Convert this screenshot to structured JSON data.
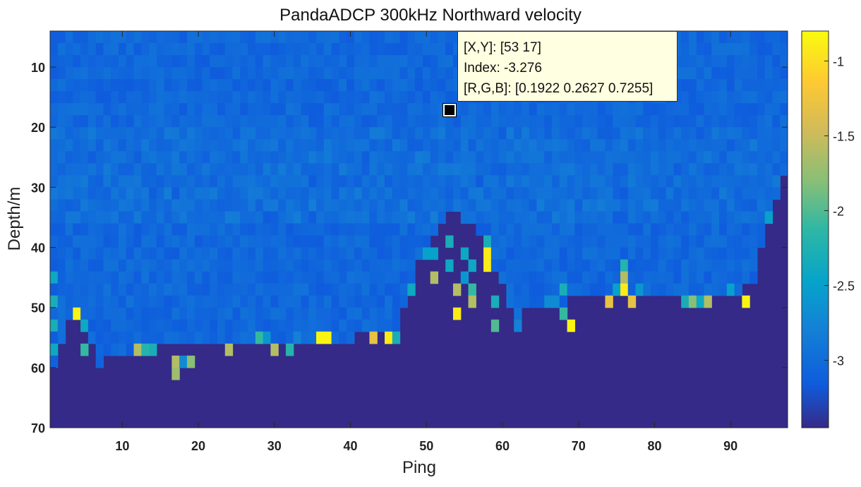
{
  "chart_data": {
    "type": "heatmap",
    "title": "PandaADCP 300kHz Northward velocity",
    "xlabel": "Ping",
    "ylabel": "Depth/m",
    "xlim": [
      0.5,
      97.5
    ],
    "ylim": [
      4,
      70
    ],
    "y_reversed": true,
    "xticks": [
      "10",
      "20",
      "30",
      "40",
      "50",
      "60",
      "70",
      "80",
      "90"
    ],
    "yticks": [
      "10",
      "20",
      "30",
      "40",
      "50",
      "60",
      "70"
    ],
    "colorbar": {
      "colormap": "parula",
      "range": [
        -3.45,
        -0.8
      ],
      "ticks": [
        "-1",
        "-1.5",
        "-2",
        "-2.5",
        "-3"
      ]
    },
    "background_value": -3.45,
    "base_value": -3.05,
    "bottom_depth_profile": [
      [
        1,
        60
      ],
      [
        3,
        52
      ],
      [
        4,
        50
      ],
      [
        7,
        60
      ],
      [
        9,
        58
      ],
      [
        16,
        56
      ],
      [
        25,
        56
      ],
      [
        35,
        56
      ],
      [
        46,
        54
      ],
      [
        48,
        46
      ],
      [
        50,
        40
      ],
      [
        53,
        34
      ],
      [
        58,
        38
      ],
      [
        59,
        44
      ],
      [
        62,
        52
      ],
      [
        64,
        50
      ],
      [
        74,
        48
      ],
      [
        90,
        48
      ],
      [
        93,
        46
      ],
      [
        95,
        36
      ],
      [
        97,
        28
      ]
    ],
    "anomalies": [
      {
        "ping": 1,
        "depth": 45,
        "value": -2.4
      },
      {
        "ping": 1,
        "depth": 49,
        "value": -2.3
      },
      {
        "ping": 1,
        "depth": 53,
        "value": -2.3
      },
      {
        "ping": 1,
        "depth": 57,
        "value": -2.4
      },
      {
        "ping": 4,
        "depth": 51,
        "value": -0.85
      },
      {
        "ping": 5,
        "depth": 53,
        "value": -2.4
      },
      {
        "ping": 5,
        "depth": 57,
        "value": -2.1
      },
      {
        "ping": 12,
        "depth": 57,
        "value": -1.6
      },
      {
        "ping": 13,
        "depth": 57,
        "value": -2.2
      },
      {
        "ping": 14,
        "depth": 57,
        "value": -2.3
      },
      {
        "ping": 17,
        "depth": 59,
        "value": -1.6
      },
      {
        "ping": 17,
        "depth": 61,
        "value": -1.7
      },
      {
        "ping": 18,
        "depth": 59,
        "value": -2.7
      },
      {
        "ping": 19,
        "depth": 59,
        "value": -1.8
      },
      {
        "ping": 24,
        "depth": 57,
        "value": -1.6
      },
      {
        "ping": 28,
        "depth": 55,
        "value": -2.1
      },
      {
        "ping": 29,
        "depth": 55,
        "value": -2.6
      },
      {
        "ping": 30,
        "depth": 57,
        "value": -1.6
      },
      {
        "ping": 32,
        "depth": 57,
        "value": -2.2
      },
      {
        "ping": 33,
        "depth": 55,
        "value": -2.8
      },
      {
        "ping": 36,
        "depth": 55,
        "value": -0.85
      },
      {
        "ping": 37,
        "depth": 55,
        "value": -0.85
      },
      {
        "ping": 43,
        "depth": 55,
        "value": -1.3
      },
      {
        "ping": 45,
        "depth": 55,
        "value": -0.9
      },
      {
        "ping": 46,
        "depth": 55,
        "value": -2.3
      },
      {
        "ping": 48,
        "depth": 47,
        "value": -2.4
      },
      {
        "ping": 50,
        "depth": 41,
        "value": -2.5
      },
      {
        "ping": 51,
        "depth": 41,
        "value": -2.5
      },
      {
        "ping": 51,
        "depth": 45,
        "value": -1.6
      },
      {
        "ping": 53,
        "depth": 39,
        "value": -2.3
      },
      {
        "ping": 53,
        "depth": 43,
        "value": -2.4
      },
      {
        "ping": 54,
        "depth": 47,
        "value": -1.6
      },
      {
        "ping": 54,
        "depth": 51,
        "value": -0.9
      },
      {
        "ping": 55,
        "depth": 41,
        "value": -2.4
      },
      {
        "ping": 55,
        "depth": 45,
        "value": -2.6
      },
      {
        "ping": 56,
        "depth": 43,
        "value": -2.4
      },
      {
        "ping": 56,
        "depth": 47,
        "value": -2.1
      },
      {
        "ping": 56,
        "depth": 49,
        "value": -1.6
      },
      {
        "ping": 58,
        "depth": 39,
        "value": -2.3
      },
      {
        "ping": 58,
        "depth": 41,
        "value": -0.9
      },
      {
        "ping": 58,
        "depth": 43,
        "value": -0.9
      },
      {
        "ping": 59,
        "depth": 49,
        "value": -2.3
      },
      {
        "ping": 59,
        "depth": 53,
        "value": -2.0
      },
      {
        "ping": 62,
        "depth": 53,
        "value": -2.8
      },
      {
        "ping": 66,
        "depth": 49,
        "value": -2.7
      },
      {
        "ping": 67,
        "depth": 49,
        "value": -2.7
      },
      {
        "ping": 68,
        "depth": 47,
        "value": -2.3
      },
      {
        "ping": 68,
        "depth": 51,
        "value": -2.1
      },
      {
        "ping": 69,
        "depth": 53,
        "value": -0.85
      },
      {
        "ping": 74,
        "depth": 49,
        "value": -1.3
      },
      {
        "ping": 75,
        "depth": 47,
        "value": -2.5
      },
      {
        "ping": 76,
        "depth": 43,
        "value": -2.2
      },
      {
        "ping": 76,
        "depth": 45,
        "value": -1.6
      },
      {
        "ping": 76,
        "depth": 47,
        "value": -0.9
      },
      {
        "ping": 77,
        "depth": 49,
        "value": -1.3
      },
      {
        "ping": 78,
        "depth": 47,
        "value": -2.6
      },
      {
        "ping": 84,
        "depth": 49,
        "value": -2.3
      },
      {
        "ping": 85,
        "depth": 49,
        "value": -1.8
      },
      {
        "ping": 86,
        "depth": 49,
        "value": -2.4
      },
      {
        "ping": 87,
        "depth": 49,
        "value": -1.6
      },
      {
        "ping": 90,
        "depth": 47,
        "value": -2.5
      },
      {
        "ping": 92,
        "depth": 49,
        "value": -0.85
      },
      {
        "ping": 95,
        "depth": 35,
        "value": -2.5
      }
    ]
  },
  "datatip": {
    "line1": "[X,Y]: [53 17]",
    "line2": "Index: -3.276",
    "line3": "[R,G,B]: [0.1922 0.2627 0.7255]",
    "ping": 53,
    "depth": 17
  }
}
